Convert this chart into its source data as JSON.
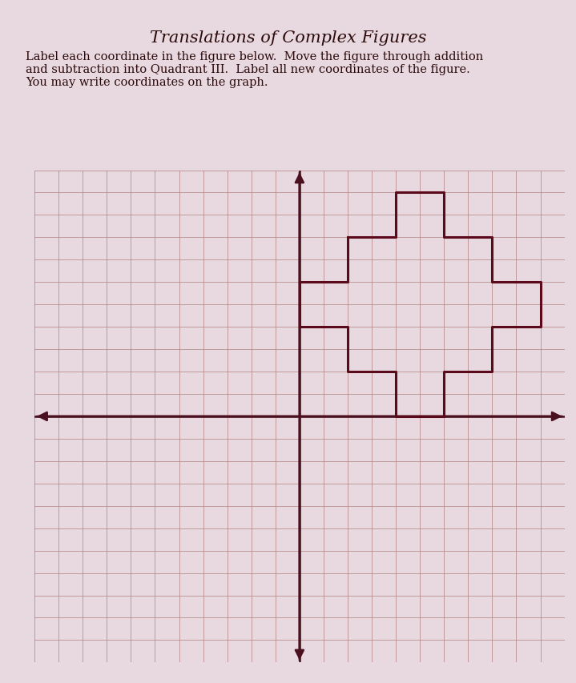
{
  "title": "Translations of Complex Figures",
  "instructions": "Label each coordinate in the figure below.  Move the figure through addition\nand subtraction into Quadrant III.  Label all new coordinates of the figure.\nYou may write coordinates on the graph.",
  "background_color": "#e8d8e0",
  "grid_color": "#b08080",
  "axis_color": "#4a1020",
  "figure_color": "#5a0a1a",
  "figure_linewidth": 2.2,
  "axis_linewidth": 1.8,
  "grid_linewidth": 0.5,
  "xlim": [
    -11,
    11
  ],
  "ylim": [
    -11,
    11
  ],
  "title_fontsize": 15,
  "instructions_fontsize": 10.5,
  "shape_coords": [
    [
      2,
      8
    ],
    [
      4,
      8
    ],
    [
      4,
      10
    ],
    [
      6,
      10
    ],
    [
      6,
      8
    ],
    [
      8,
      8
    ],
    [
      8,
      6
    ],
    [
      10,
      6
    ],
    [
      10,
      4
    ],
    [
      8,
      4
    ],
    [
      8,
      2
    ],
    [
      6,
      2
    ],
    [
      6,
      0
    ],
    [
      4,
      0
    ],
    [
      4,
      2
    ],
    [
      2,
      2
    ],
    [
      2,
      4
    ],
    [
      0,
      4
    ],
    [
      0,
      6
    ],
    [
      2,
      6
    ],
    [
      2,
      8
    ]
  ]
}
